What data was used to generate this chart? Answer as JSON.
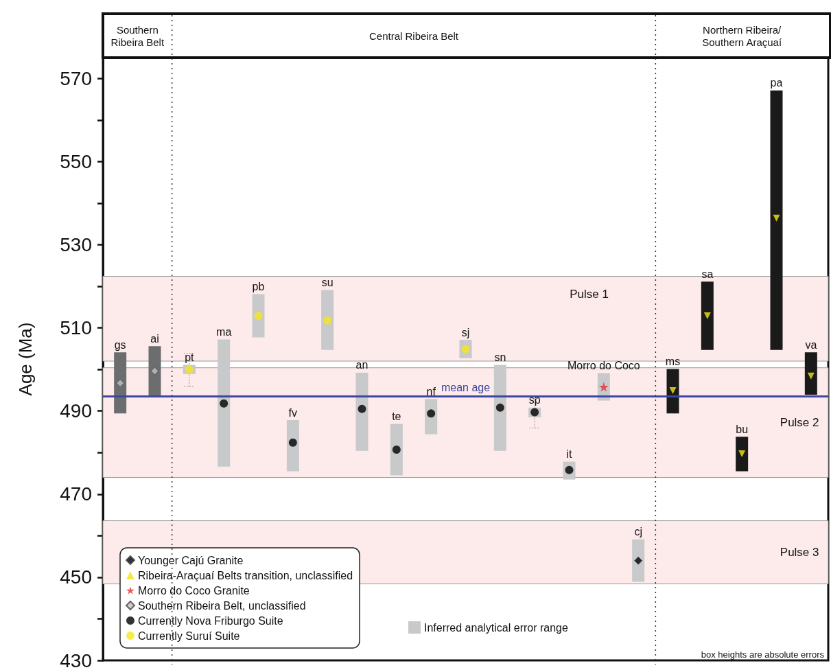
{
  "chart_data": {
    "type": "bar",
    "ylabel": "Age (Ma)",
    "categories": [
      "gs",
      "ai",
      "pt",
      "ma",
      "pb",
      "fv",
      "su",
      "an",
      "te",
      "nf",
      "sj",
      "sn",
      "sp",
      "it",
      "Morro do Coco",
      "cj",
      "ms",
      "sa",
      "bu",
      "pa",
      "va"
    ],
    "series": [
      {
        "name": "Inferred analytical error range",
        "color": "#c7c9cb",
        "base": [
          489.4,
          493.6,
          498.9,
          476.6,
          507.7,
          475.5,
          504.7,
          480.4,
          474.5,
          484.4,
          502.7,
          480.4,
          488.5,
          473.5,
          492.5,
          448.9,
          489.4,
          504.7,
          475.5,
          504.7,
          493.9
        ],
        "values": [
          14.7,
          12.0,
          2.2,
          30.6,
          10.4,
          12.3,
          14.4,
          18.8,
          12.4,
          8.5,
          4.4,
          20.7,
          2.3,
          4.3,
          6.6,
          10.2,
          10.7,
          16.4,
          8.3,
          62.4,
          10.2
        ],
        "colors": [
          "#6b6d6f",
          "#6b6d6f",
          "#c7c9cb",
          "#c7c9cb",
          "#c7c9cb",
          "#c7c9cb",
          "#c7c9cb",
          "#c7c9cb",
          "#c7c9cb",
          "#c7c9cb",
          "#c7c9cb",
          "#c7c9cb",
          "#c7c9cb",
          "#c7c9cb",
          "#c7c9cb",
          "#c7c9cb",
          "#1a1a1a",
          "#1a1a1a",
          "#1a1a1a",
          "#1a1a1a",
          "#1a1a1a"
        ],
        "errors": [
          null,
          null,
          [
            495.9,
            503.9
          ],
          null,
          null,
          null,
          null,
          null,
          null,
          null,
          null,
          null,
          [
            485.9,
            493.0
          ],
          null,
          null,
          null,
          null,
          null,
          null,
          null,
          null
        ]
      },
      {
        "type": "scatter",
        "name": "Younger Cajú Granite",
        "color": "#000000",
        "marker": "diamond",
        "x": [
          "cj"
        ],
        "values": [
          454.0
        ]
      },
      {
        "type": "scatter",
        "name": "Ribeira-Araçuaí Belts transition, unclassified",
        "color": "#f2e21c",
        "marker": "triangle",
        "x": [
          "ms",
          "sa",
          "bu",
          "pa",
          "va"
        ],
        "values": [
          494.9,
          512.9,
          479.7,
          536.4,
          498.4
        ]
      },
      {
        "type": "scatter",
        "name": "Morro do Coco Granite",
        "color": "#e8312f",
        "marker": "star",
        "x": [
          "Morro do Coco"
        ],
        "values": [
          495.8
        ]
      },
      {
        "type": "scatter",
        "name": "Southern Ribeira Belt, unclassified",
        "color": "#c0c0c0",
        "marker": "diamond",
        "x": [
          "gs",
          "ai"
        ],
        "values": [
          496.7,
          499.6
        ]
      },
      {
        "type": "scatter",
        "name": "Currently Nova Friburgo Suite",
        "color": "#000000",
        "marker": "circle",
        "x": [
          "ma",
          "fv",
          "an",
          "te",
          "nf",
          "sn",
          "sp",
          "it"
        ],
        "values": [
          491.8,
          482.4,
          490.5,
          480.7,
          489.4,
          490.8,
          489.7,
          475.8
        ]
      },
      {
        "type": "scatter",
        "name": "Currently Suruí Suite",
        "color": "#f5e620",
        "marker": "circle",
        "x": [
          "pt",
          "pb",
          "su",
          "sj"
        ],
        "values": [
          500.0,
          512.9,
          511.8,
          504.9
        ]
      }
    ],
    "ylim": [
      430,
      575
    ],
    "yticks": [
      430,
      {
        "value": 440,
        "label": null
      },
      450,
      {
        "value": 460,
        "label": null
      },
      470,
      {
        "value": 480,
        "label": null
      },
      490,
      {
        "value": 500,
        "label": null
      },
      510,
      {
        "value": 520,
        "label": null
      },
      530,
      {
        "value": 540,
        "label": null
      },
      550,
      {
        "value": 560,
        "label": null
      },
      570
    ],
    "bands": [
      {
        "axis": "y",
        "from": 502.0,
        "to": 522.4,
        "label": "Pulse 1",
        "color": "#fdeaea"
      },
      {
        "axis": "y",
        "from": 474.0,
        "to": 500.4,
        "label": "Pulse 2",
        "color": "#fdeaea"
      },
      {
        "axis": "y",
        "from": 448.4,
        "to": 463.6,
        "label": "Pulse 3",
        "color": "#fdeaea"
      }
    ],
    "ref_lines": [
      {
        "axis": "y",
        "value": 493.5,
        "label": "mean age",
        "color": "#3b47a3",
        "line_style": "solid"
      }
    ],
    "annotations": [
      "Southern\nRibeira Belt",
      "Central Ribeira Belt",
      "Northern Ribeira/\nSouthern Araçuaí",
      "box heights are absolute errors"
    ],
    "grid": false,
    "legend": "bottom left",
    "tick_labels": "y"
  }
}
